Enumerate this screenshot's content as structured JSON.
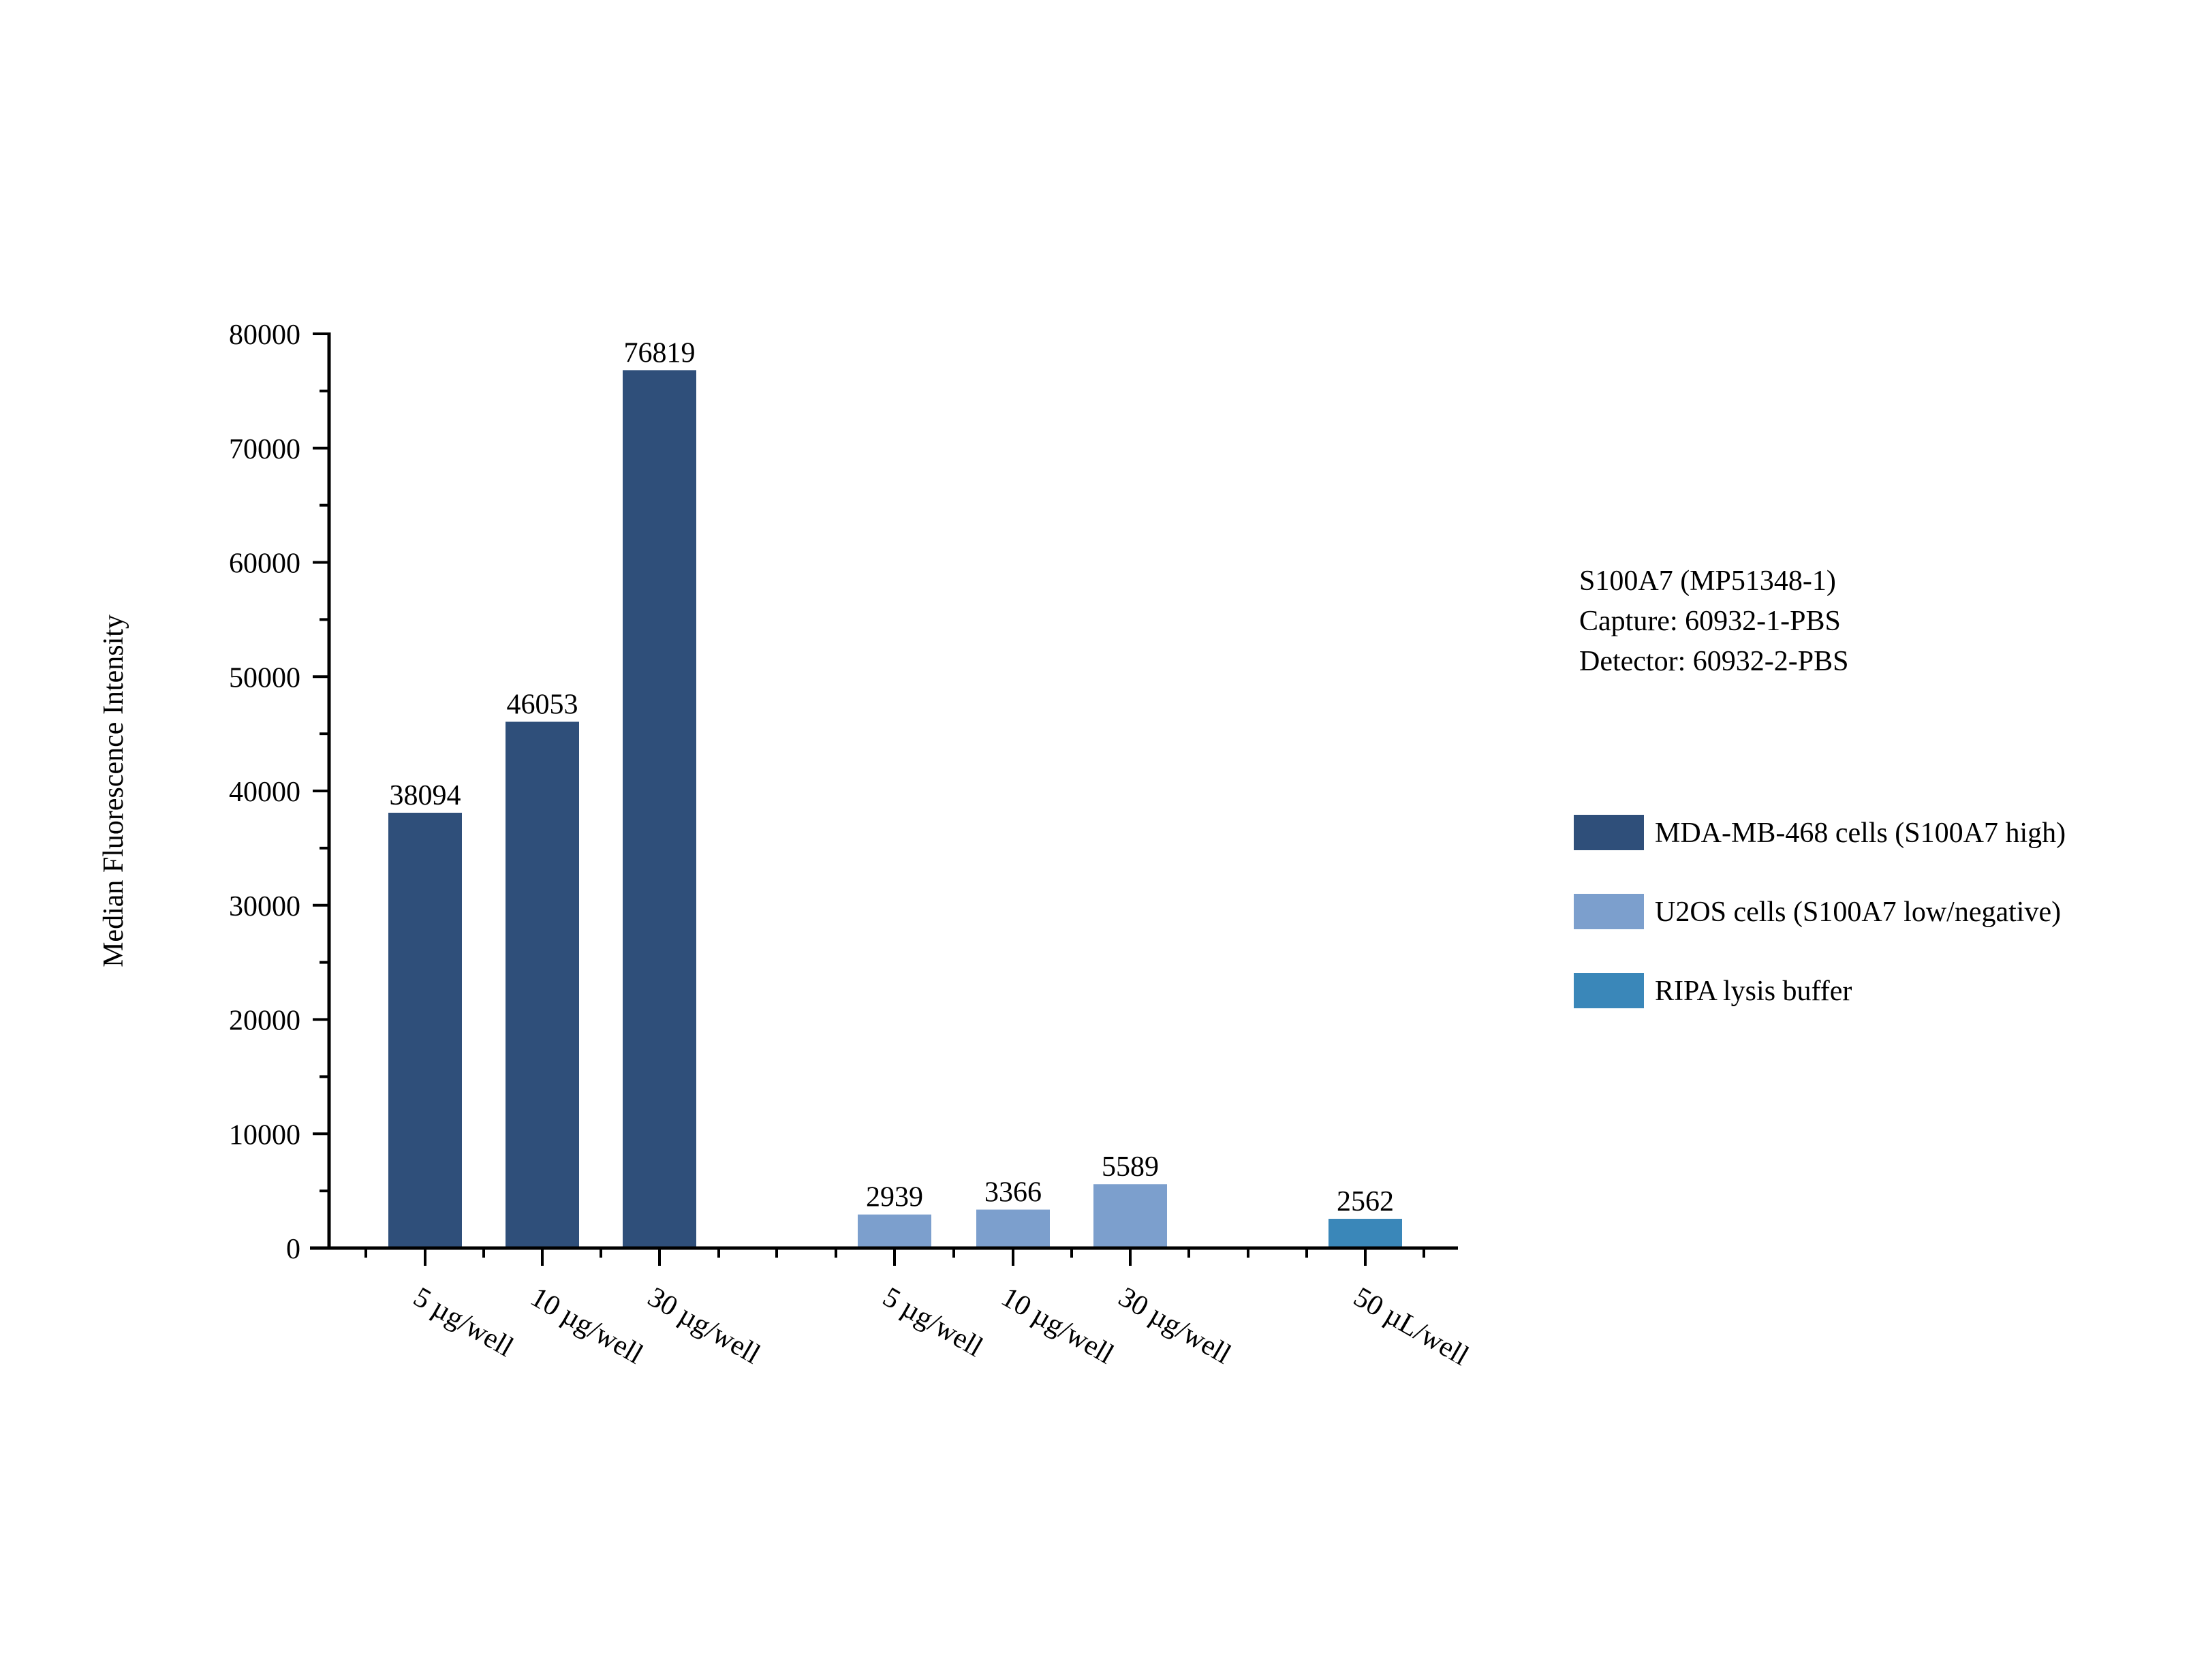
{
  "chart_data": {
    "type": "bar",
    "ylabel": "Median Fluorescence Intensity",
    "xlabel": "",
    "ylim": [
      0,
      80000
    ],
    "yticks": [
      0,
      10000,
      20000,
      30000,
      40000,
      50000,
      60000,
      70000,
      80000
    ],
    "grid": false,
    "legend_position": "right",
    "annotation_lines": [
      "S100A7 (MP51348-1)",
      "Capture: 60932-1-PBS",
      "Detector: 60932-2-PBS"
    ],
    "series": [
      {
        "name": "MDA-MB-468 cells (S100A7 high)",
        "color": "#2f4f7a",
        "categories": [
          "5 µg/well",
          "10 µg/well",
          "30 µg/well"
        ],
        "values": [
          38094,
          46053,
          76819
        ]
      },
      {
        "name": "U2OS cells (S100A7 low/negative)",
        "color": "#7c9fcd",
        "categories": [
          "5 µg/well",
          "10 µg/well",
          "30 µg/well"
        ],
        "values": [
          2939,
          3366,
          5589
        ]
      },
      {
        "name": "RIPA lysis buffer",
        "color": "#3a87b9",
        "categories": [
          "50 µL/well"
        ],
        "values": [
          2562
        ]
      }
    ]
  }
}
